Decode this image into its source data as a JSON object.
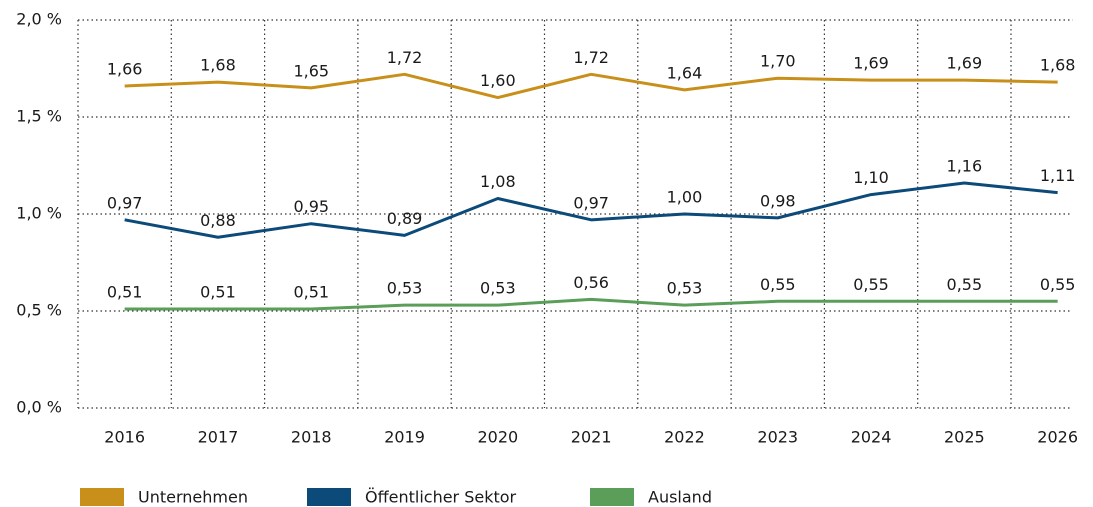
{
  "chart_data": {
    "type": "line",
    "categories": [
      "2016",
      "2017",
      "2018",
      "2019",
      "2020",
      "2021",
      "2022",
      "2023",
      "2024",
      "2025",
      "2026"
    ],
    "series": [
      {
        "name": "Unternehmen",
        "color": "#c8901a",
        "values": [
          1.66,
          1.68,
          1.65,
          1.72,
          1.6,
          1.72,
          1.64,
          1.7,
          1.69,
          1.69,
          1.68
        ],
        "value_labels": [
          "1,66",
          "1,68",
          "1,65",
          "1,72",
          "1,60",
          "1,72",
          "1,64",
          "1,70",
          "1,69",
          "1,69",
          "1,68"
        ]
      },
      {
        "name": "Öffentlicher Sektor",
        "color": "#0c4a7a",
        "values": [
          0.97,
          0.88,
          0.95,
          0.89,
          1.08,
          0.97,
          1.0,
          0.98,
          1.1,
          1.16,
          1.11
        ],
        "value_labels": [
          "0,97",
          "0,88",
          "0,95",
          "0,89",
          "1,08",
          "0,97",
          "1,00",
          "0,98",
          "1,10",
          "1,16",
          "1,11"
        ]
      },
      {
        "name": "Ausland",
        "color": "#5a9e5a",
        "values": [
          0.51,
          0.51,
          0.51,
          0.53,
          0.53,
          0.56,
          0.53,
          0.55,
          0.55,
          0.55,
          0.55
        ],
        "value_labels": [
          "0,51",
          "0,51",
          "0,51",
          "0,53",
          "0,53",
          "0,56",
          "0,53",
          "0,55",
          "0,55",
          "0,55",
          "0,55"
        ]
      }
    ],
    "ylim": [
      0,
      2.0
    ],
    "yticks": [
      {
        "value": 0,
        "label": "0,0 %"
      },
      {
        "value": 0.5,
        "label": "0,5 %"
      },
      {
        "value": 1.0,
        "label": "1,0 %"
      },
      {
        "value": 1.5,
        "label": "1,5 %"
      },
      {
        "value": 2.0,
        "label": "2,0 %"
      }
    ],
    "grid": true,
    "legend": "bottom"
  }
}
